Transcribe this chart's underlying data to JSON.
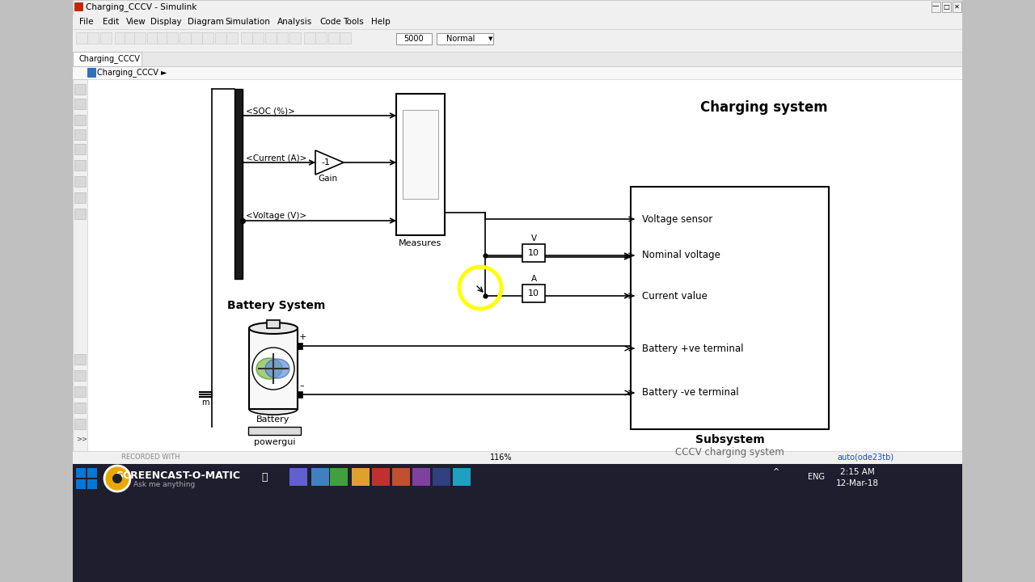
{
  "title_bar": "Charging_CCCV - Simulink",
  "tab_label": "Charging_CCCV",
  "breadcrumb": "Charging_CCCV ►",
  "bg_color": "#f0f0f0",
  "canvas_color": "#ffffff",
  "toolbar_color": "#e8e8e8",
  "text_color": "#000000",
  "charging_system_label": "Charging system",
  "battery_system_label": "Battery System",
  "subsystem_label": "Subsystem",
  "cccv_label": "CCCV charging system",
  "measures_label": "Measures",
  "gain_label": "Gain",
  "battery_label": "Battery",
  "powergui_label": "powergui",
  "soc_label": "<SOC (%)>",
  "current_label": "<Current (A)>",
  "voltage_label": "<Voltage (V)>",
  "gain_value": "-1",
  "v_label": "V",
  "a_label": "A",
  "v_value": "10",
  "a_value": "10",
  "voltage_sensor_label": "Voltage sensor",
  "nominal_voltage_label": "Nominal voltage",
  "current_value_label": "Current value",
  "battery_pos_label": "Battery +ve terminal",
  "battery_neg_label": "Battery -ve terminal",
  "status_bar_text": "116%",
  "status_bar_right": "auto(ode23tb)",
  "screencast_text": "SCREENCAST-O-MATIC",
  "recorded_text": "RECORDED WITH",
  "time_text": "2:15 AM",
  "date_text": "12-Mar-18",
  "title_bar_color": "#f0f0f0",
  "title_bar_text_color": "#000000",
  "window_bg": "#f0f0f0",
  "canvas_bg": "#ffffff",
  "taskbar_bg": "#1e2133",
  "taskbar_bottom_bg": "#1e2133"
}
